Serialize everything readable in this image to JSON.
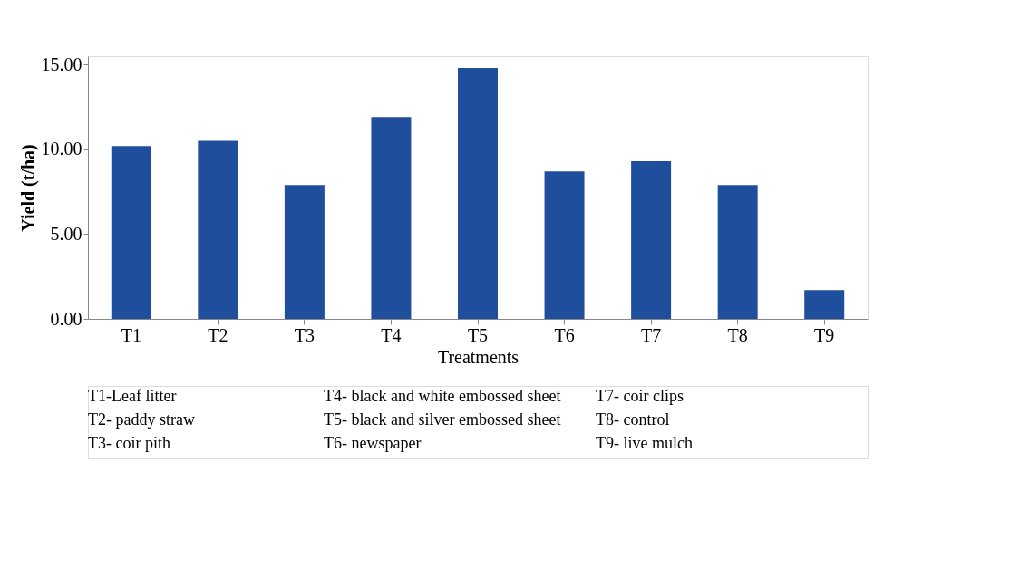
{
  "chart_data": {
    "type": "bar",
    "xlabel": "Treatments",
    "ylabel": "Yield (t/ha)",
    "categories": [
      "T1",
      "T2",
      "T3",
      "T4",
      "T5",
      "T6",
      "T7",
      "T8",
      "T9"
    ],
    "values": [
      10.2,
      10.5,
      7.9,
      11.9,
      14.8,
      8.7,
      9.3,
      7.9,
      1.7
    ],
    "color": "#1f4e9c",
    "ylim": [
      0,
      15.5
    ],
    "yticks": [
      {
        "value": 0,
        "label": "0.00"
      },
      {
        "value": 5,
        "label": "5.00"
      },
      {
        "value": 10,
        "label": "10.00"
      },
      {
        "value": 15,
        "label": "15.00"
      }
    ],
    "grid": false,
    "annotations": [
      "T1-Leaf litter",
      "T2- paddy straw",
      "T3- coir pith",
      "T4- black and white embossed sheet",
      "T5- black and silver embossed sheet",
      "T6- newspaper",
      "T7- coir clips",
      "T8- control",
      "T9- live mulch"
    ]
  }
}
